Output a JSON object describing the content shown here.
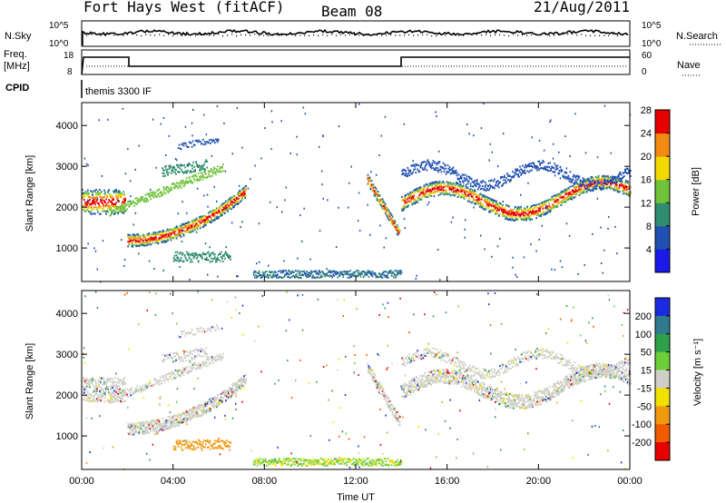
{
  "header": {
    "title": "Fort Hays West (fitACF)",
    "beam": "Beam 08",
    "date": "21/Aug/2011"
  },
  "status_panel": {
    "nsky_label": "N.Sky",
    "nsky_ticks": [
      "10^5",
      "10^0"
    ],
    "nsearch_label": "N.Search",
    "nsearch_ticks": [
      "10^5",
      "10^0"
    ],
    "freq_label_1": "Freq.",
    "freq_label_2": "[MHz]",
    "freq_ticks": [
      "18",
      "8"
    ],
    "nave_label": "Nave",
    "nave_ticks": [
      "60",
      "0"
    ],
    "cpid_label": "CPID",
    "cpid_value": "themis 3300 IF"
  },
  "chart_data": [
    {
      "type": "heatmap",
      "name": "power",
      "ylabel": "Slant Range [km]",
      "xlabel": "",
      "x_ticks": [
        "00:00",
        "04:00",
        "08:00",
        "12:00",
        "16:00",
        "20:00",
        "00:00"
      ],
      "y_ticks": [
        "1000",
        "2000",
        "3000",
        "4000"
      ],
      "xlim_hours": [
        0,
        24
      ],
      "ylim_km": [
        180,
        4560
      ],
      "colorbar_label": "Power [dB]",
      "colorbar_ticks": [
        "4",
        "8",
        "12",
        "16",
        "20",
        "24",
        "28"
      ],
      "colorbar_colors": [
        "#1a1ae6",
        "#1f4fb0",
        "#2f8c6e",
        "#6fc23a",
        "#f0d800",
        "#f08a10",
        "#e60000"
      ]
    },
    {
      "type": "heatmap",
      "name": "velocity",
      "ylabel": "Slant Range [km]",
      "xlabel": "Time UT",
      "x_ticks": [
        "00:00",
        "04:00",
        "08:00",
        "12:00",
        "16:00",
        "20:00",
        "00:00"
      ],
      "y_ticks": [
        "1000",
        "2000",
        "3000",
        "4000"
      ],
      "xlim_hours": [
        0,
        24
      ],
      "ylim_km": [
        180,
        4560
      ],
      "colorbar_label": "Velocity [m s⁻¹]",
      "colorbar_ticks": [
        "200",
        "100",
        "50",
        "15",
        "-15",
        "-50",
        "-100",
        "-200"
      ],
      "colorbar_colors": [
        "#1a2ae0",
        "#2f7a8e",
        "#2ea04a",
        "#6ccf3a",
        "#cfcfc8",
        "#f2e000",
        "#f09a10",
        "#f05a00",
        "#e60000"
      ]
    }
  ]
}
